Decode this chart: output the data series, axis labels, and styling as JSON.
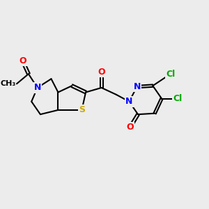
{
  "background_color": "#ececec",
  "bond_color": "#000000",
  "bond_width": 1.5,
  "atom_colors": {
    "O": "#ff0000",
    "N": "#0000ff",
    "S": "#ccaa00",
    "Cl": "#00aa00",
    "C": "#000000"
  },
  "font_size": 9,
  "title": ""
}
